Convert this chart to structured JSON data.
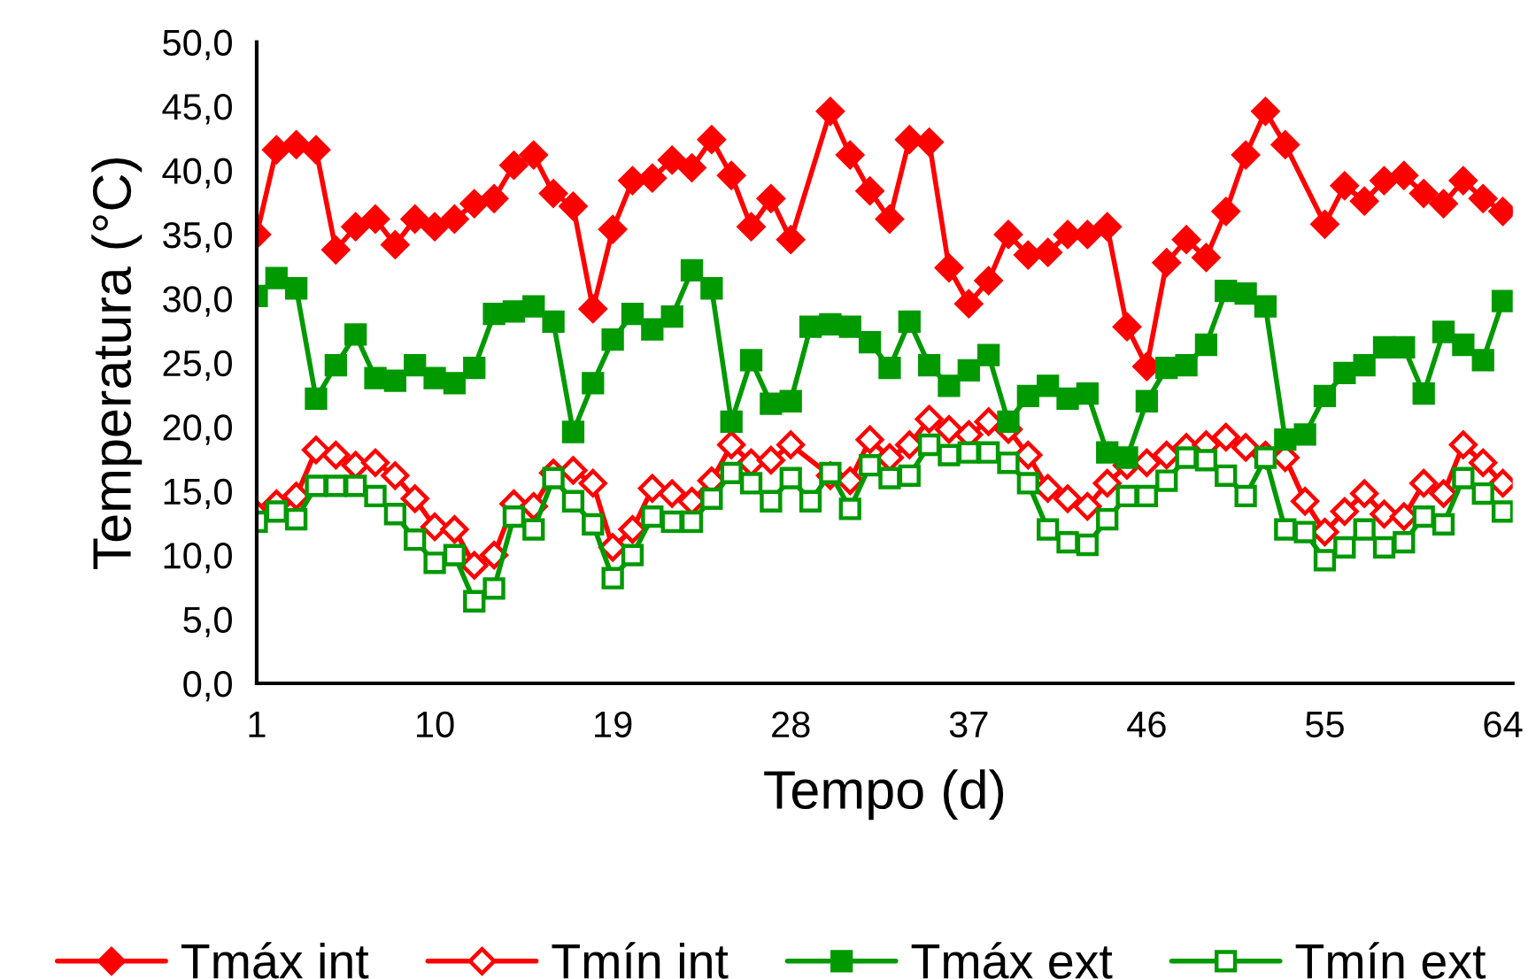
{
  "chart_data": {
    "type": "line",
    "xlabel": "Tempo (d)",
    "ylabel": "Temperatura (°C)",
    "x": [
      1,
      2,
      3,
      4,
      5,
      6,
      7,
      8,
      9,
      10,
      11,
      12,
      13,
      14,
      15,
      16,
      17,
      18,
      19,
      20,
      21,
      22,
      23,
      24,
      25,
      26,
      27,
      28,
      29,
      30,
      31,
      32,
      33,
      34,
      35,
      36,
      37,
      38,
      39,
      40,
      41,
      42,
      43,
      44,
      45,
      46,
      47,
      48,
      49,
      50,
      51,
      52,
      53,
      54,
      55,
      56,
      57,
      58,
      59,
      60,
      61,
      62,
      63,
      64
    ],
    "xlim": [
      1,
      64.5
    ],
    "xticks": [
      1,
      10,
      19,
      28,
      37,
      46,
      55,
      64
    ],
    "ylim": [
      0,
      50
    ],
    "yticks": [
      {
        "value": 0,
        "label": "0,0"
      },
      {
        "value": 5,
        "label": "5,0"
      },
      {
        "value": 10,
        "label": "10,0"
      },
      {
        "value": 15,
        "label": "15,0"
      },
      {
        "value": 20,
        "label": "20,0"
      },
      {
        "value": 25,
        "label": "25,0"
      },
      {
        "value": 30,
        "label": "30,0"
      },
      {
        "value": 35,
        "label": "35,0"
      },
      {
        "value": 40,
        "label": "40,0"
      },
      {
        "value": 45,
        "label": "45,0"
      },
      {
        "value": 50,
        "label": "50,0"
      }
    ],
    "grid": false,
    "legend": "bottom",
    "line_style": "solid",
    "series": [
      {
        "name": "Tmáx int",
        "color": "#ff0000",
        "marker": "diamond",
        "values": [
          35.0,
          41.6,
          42.0,
          41.6,
          33.8,
          35.6,
          36.2,
          34.2,
          36.2,
          35.6,
          36.2,
          37.4,
          37.8,
          40.4,
          41.2,
          38.2,
          37.2,
          29.2,
          35.4,
          39.2,
          39.4,
          40.8,
          40.2,
          42.4,
          39.6,
          35.6,
          37.8,
          34.6,
          null,
          44.6,
          41.2,
          38.4,
          36.2,
          42.4,
          42.2,
          32.4,
          29.6,
          31.4,
          35.0,
          33.4,
          33.6,
          35.0,
          35.0,
          35.6,
          27.8,
          24.7,
          32.8,
          34.6,
          33.2,
          36.8,
          41.2,
          44.6,
          42.0,
          null,
          35.8,
          38.8,
          37.6,
          39.2,
          39.6,
          38.2,
          37.4,
          39.2,
          37.8,
          36.8
        ]
      },
      {
        "name": "Tmín int",
        "color": "#ff0000",
        "marker": "diamond",
        "values": [
          13.2,
          14.0,
          14.6,
          18.2,
          17.8,
          17.0,
          17.2,
          16.2,
          14.4,
          12.2,
          12.0,
          9.2,
          10.0,
          14.0,
          13.8,
          16.4,
          16.6,
          15.6,
          10.6,
          12.0,
          15.2,
          14.8,
          14.2,
          15.8,
          18.6,
          17.2,
          17.4,
          18.6,
          null,
          16.2,
          15.8,
          19.0,
          17.6,
          18.6,
          20.6,
          19.8,
          19.4,
          20.4,
          19.8,
          17.8,
          15.2,
          14.4,
          13.8,
          15.6,
          17.0,
          17.2,
          17.8,
          18.4,
          18.6,
          19.2,
          18.4,
          17.8,
          17.6,
          14.2,
          11.8,
          13.4,
          14.8,
          13.2,
          13.0,
          15.6,
          14.8,
          18.6,
          17.2,
          15.6
        ]
      },
      {
        "name": "Tmáx ext",
        "color": "#009900",
        "marker": "square",
        "values": [
          30.2,
          31.6,
          30.8,
          22.2,
          24.8,
          27.2,
          23.8,
          23.6,
          24.8,
          23.8,
          23.4,
          24.6,
          28.8,
          29.0,
          29.4,
          28.2,
          19.6,
          23.4,
          26.8,
          28.8,
          27.6,
          28.6,
          32.2,
          30.8,
          20.4,
          25.2,
          21.8,
          22.0,
          27.8,
          28.0,
          27.8,
          26.6,
          24.6,
          28.2,
          24.8,
          23.2,
          24.4,
          25.6,
          20.4,
          22.4,
          23.2,
          22.2,
          22.6,
          18.0,
          17.6,
          22.0,
          24.6,
          24.8,
          26.4,
          30.6,
          30.4,
          29.4,
          19.0,
          19.4,
          22.4,
          24.2,
          24.8,
          26.2,
          26.2,
          22.6,
          27.4,
          26.4,
          25.2,
          29.8
        ]
      },
      {
        "name": "Tmín ext",
        "color": "#009900",
        "marker": "square",
        "values": [
          12.6,
          13.4,
          12.8,
          15.4,
          15.4,
          15.4,
          14.6,
          13.2,
          11.2,
          9.4,
          10.0,
          6.4,
          7.4,
          13.0,
          12.0,
          16.0,
          14.2,
          12.4,
          8.2,
          10.0,
          13.0,
          12.6,
          12.6,
          14.4,
          16.4,
          15.6,
          14.2,
          16.0,
          14.2,
          16.4,
          13.6,
          17.0,
          16.0,
          16.2,
          18.6,
          17.8,
          18.0,
          18.0,
          17.2,
          15.6,
          12.0,
          11.0,
          10.8,
          12.8,
          14.6,
          14.6,
          15.8,
          17.6,
          17.4,
          16.2,
          14.6,
          17.6,
          12.0,
          11.8,
          9.6,
          10.6,
          12.0,
          10.6,
          11.0,
          13.0,
          12.4,
          16.0,
          14.8,
          13.4
        ]
      }
    ]
  }
}
